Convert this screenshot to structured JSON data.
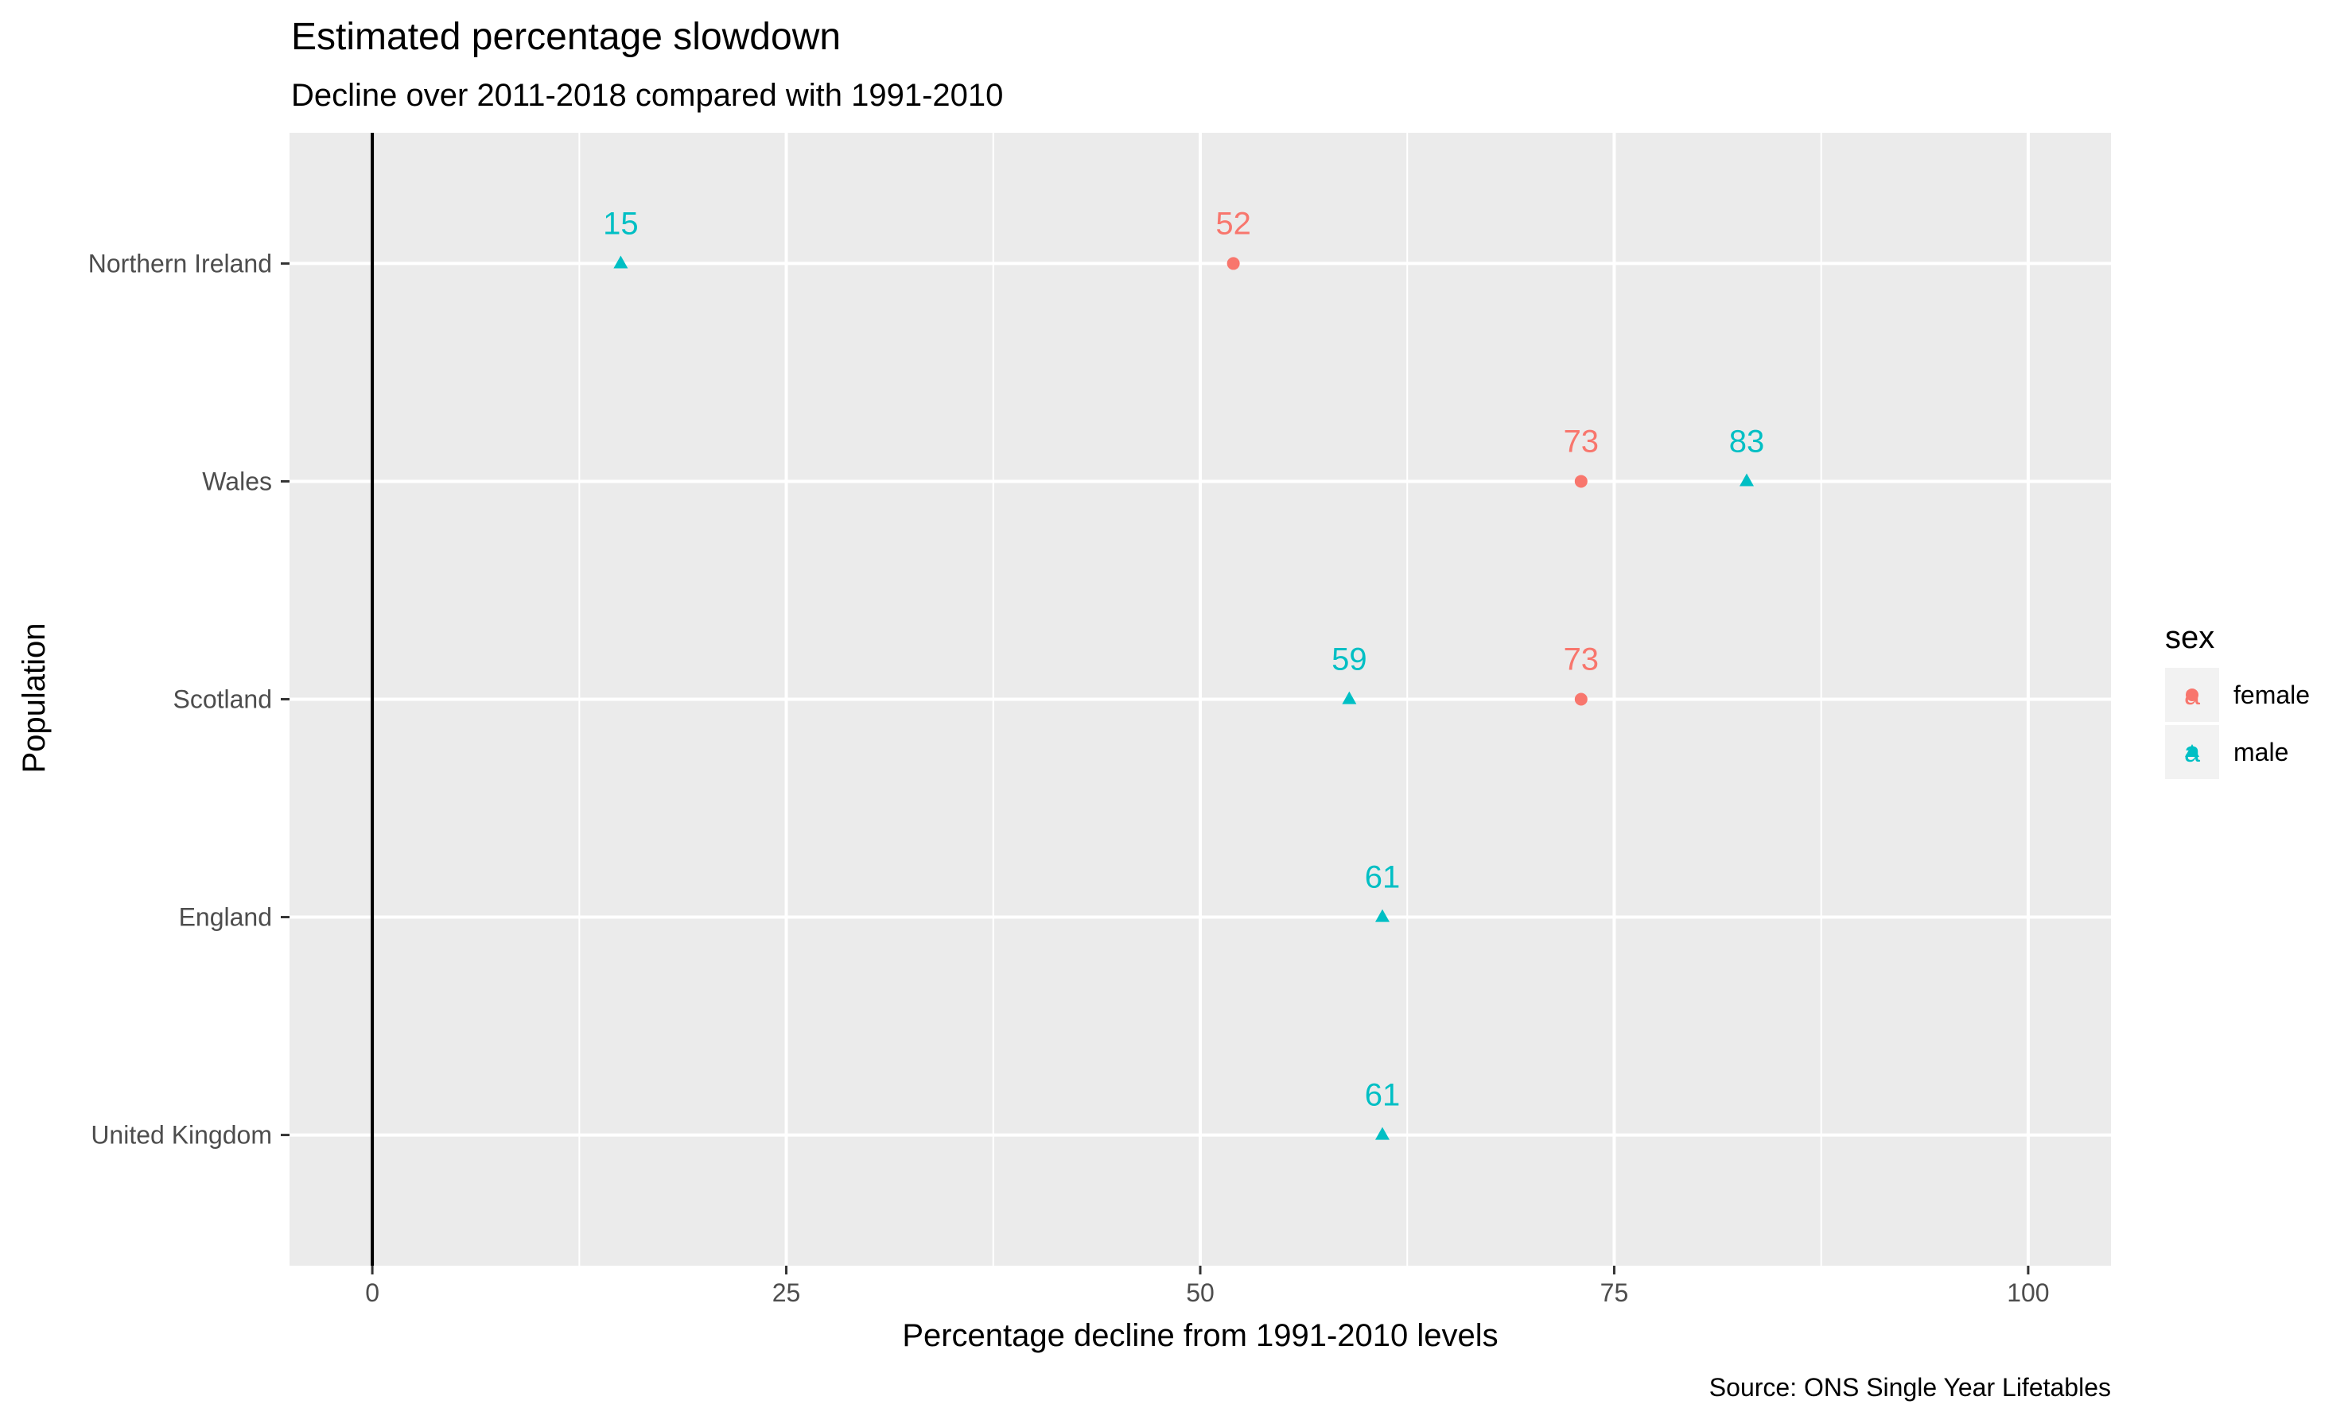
{
  "chart_data": {
    "type": "scatter",
    "title": "Estimated percentage slowdown",
    "subtitle": "Decline over 2011-2018 compared with 1991-2010",
    "xlabel": "Percentage decline from 1991-2010 levels",
    "ylabel": "Population",
    "caption": "Source: ONS Single Year Lifetables",
    "xlim": [
      -5,
      105
    ],
    "x_ticks": [
      0,
      25,
      50,
      75,
      100
    ],
    "x_tick_labels": [
      "0",
      "25",
      "50",
      "75",
      "100"
    ],
    "reference_line_x": 0,
    "grid": true,
    "categories": [
      "Northern Ireland",
      "Wales",
      "Scotland",
      "England",
      "United Kingdom"
    ],
    "legend": {
      "title": "sex",
      "placement": "right",
      "entries": [
        {
          "label": "female",
          "color": "#F8766D",
          "shape": "circle",
          "key_glyph": "a"
        },
        {
          "label": "male",
          "color": "#00BFC4",
          "shape": "triangle",
          "key_glyph": "a"
        }
      ]
    },
    "series": [
      {
        "name": "female",
        "color": "#F8766D",
        "shape": "circle",
        "points": [
          {
            "category": "Northern Ireland",
            "x": 52,
            "label": "52"
          },
          {
            "category": "Wales",
            "x": 73,
            "label": "73"
          },
          {
            "category": "Scotland",
            "x": 73,
            "label": "73"
          }
        ]
      },
      {
        "name": "male",
        "color": "#00BFC4",
        "shape": "triangle",
        "points": [
          {
            "category": "Northern Ireland",
            "x": 15,
            "label": "15"
          },
          {
            "category": "Wales",
            "x": 83,
            "label": "83"
          },
          {
            "category": "Scotland",
            "x": 59,
            "label": "59"
          },
          {
            "category": "England",
            "x": 61,
            "label": "61"
          },
          {
            "category": "United Kingdom",
            "x": 61,
            "label": "61"
          }
        ]
      }
    ],
    "colors": {
      "panel_background": "#EBEBEB",
      "grid_major": "#FFFFFF",
      "tick_text": "#4D4D4D",
      "reference_line": "#000000"
    }
  }
}
